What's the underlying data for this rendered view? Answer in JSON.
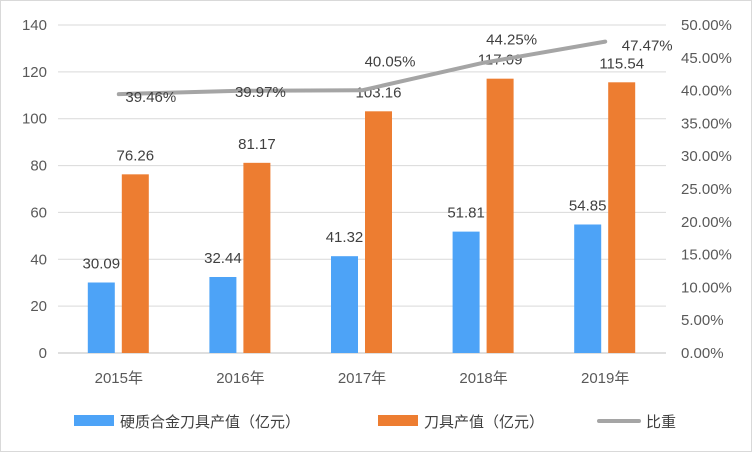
{
  "chart_data": {
    "type": "bar",
    "categories": [
      "2015年",
      "2016年",
      "2017年",
      "2018年",
      "2019年"
    ],
    "series": [
      {
        "name": "硬质合金刀具产值（亿元）",
        "kind": "bar",
        "axis": "left",
        "color": "#4da3f7",
        "values": [
          30.09,
          32.44,
          41.32,
          51.81,
          54.85
        ]
      },
      {
        "name": "刀具产值（亿元）",
        "kind": "bar",
        "axis": "left",
        "color": "#ed7d31",
        "values": [
          76.26,
          81.17,
          103.16,
          117.09,
          115.54
        ]
      },
      {
        "name": "比重",
        "kind": "line",
        "axis": "right",
        "color": "#a5a5a5",
        "values": [
          39.46,
          39.97,
          40.05,
          44.25,
          47.47
        ],
        "labels": [
          "39.46%",
          "39.97%",
          "40.05%",
          "44.25%",
          "47.47%"
        ]
      }
    ],
    "y_left": {
      "range": [
        0,
        140
      ],
      "ticks": [
        0,
        20,
        40,
        60,
        80,
        100,
        120,
        140
      ],
      "tick_labels": [
        "0",
        "20",
        "40",
        "60",
        "80",
        "100",
        "120",
        "140"
      ]
    },
    "y_right": {
      "range": [
        0,
        50
      ],
      "ticks": [
        0,
        5,
        10,
        15,
        20,
        25,
        30,
        35,
        40,
        45,
        50
      ],
      "tick_labels": [
        "0.00%",
        "5.00%",
        "10.00%",
        "15.00%",
        "20.00%",
        "25.00%",
        "30.00%",
        "35.00%",
        "40.00%",
        "45.00%",
        "50.00%"
      ]
    },
    "grid": true,
    "legend_position": "bottom"
  }
}
